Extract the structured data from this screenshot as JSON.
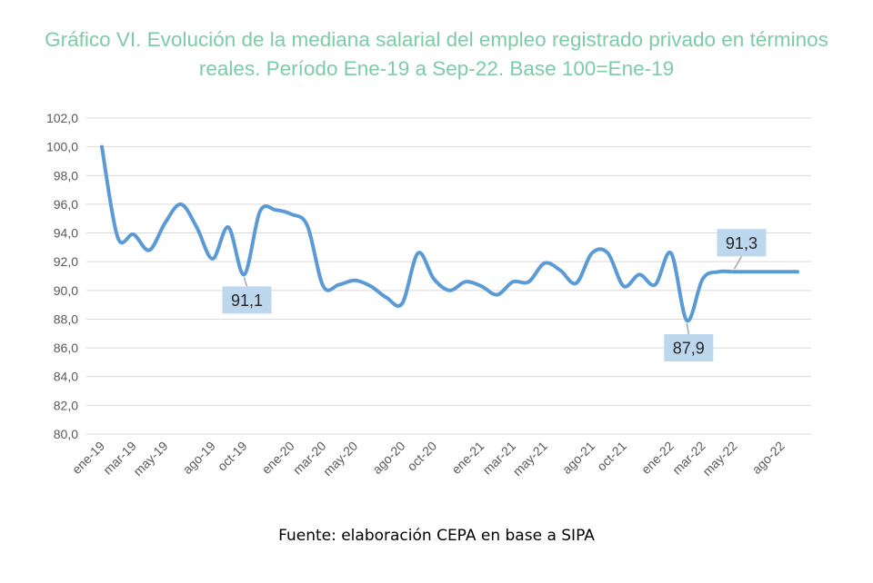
{
  "title": "Gráfico VI. Evolución de la mediana salarial del empleo registrado privado en términos reales. Período Ene-19 a Sep-22. Base 100=Ene-19",
  "source": "Fuente: elaboración CEPA en base a SIPA",
  "colors": {
    "title": "#7dcba8",
    "line": "#5b9bd5",
    "label_bg": "#bdd7ee",
    "grid": "#d9d9d9",
    "axis_text": "#595959"
  },
  "chart_data": {
    "type": "line",
    "title": "Gráfico VI. Evolución de la mediana salarial del empleo registrado privado en términos reales. Período Ene-19 a Sep-22. Base 100=Ene-19",
    "xlabel": "",
    "ylabel": "",
    "ylim": [
      80,
      102
    ],
    "yticks": [
      "80,0",
      "82,0",
      "84,0",
      "86,0",
      "88,0",
      "90,0",
      "92,0",
      "94,0",
      "96,0",
      "98,0",
      "100,0",
      "102,0"
    ],
    "grid": true,
    "legend": "none",
    "x": [
      "ene-19",
      "feb-19",
      "mar-19",
      "abr-19",
      "may-19",
      "jun-19",
      "jul-19",
      "ago-19",
      "sep-19",
      "oct-19",
      "nov-19",
      "dic-19",
      "ene-20",
      "feb-20",
      "mar-20",
      "abr-20",
      "may-20",
      "jun-20",
      "jul-20",
      "ago-20",
      "sep-20",
      "oct-20",
      "nov-20",
      "dic-20",
      "ene-21",
      "feb-21",
      "mar-21",
      "abr-21",
      "may-21",
      "jun-21",
      "jul-21",
      "ago-21",
      "sep-21",
      "oct-21",
      "nov-21",
      "dic-21",
      "ene-22",
      "feb-22",
      "mar-22",
      "abr-22",
      "may-22",
      "jun-22",
      "jul-22",
      "ago-22",
      "sep-22"
    ],
    "xtick_labels": [
      "ene-19",
      "mar-19",
      "may-19",
      "ago-19",
      "oct-19",
      "ene-20",
      "mar-20",
      "may-20",
      "ago-20",
      "oct-20",
      "ene-21",
      "mar-21",
      "may-21",
      "ago-21",
      "oct-21",
      "ene-22",
      "mar-22",
      "may-22",
      "ago-22"
    ],
    "series": [
      {
        "values": [
          100.0,
          93.7,
          93.9,
          92.8,
          94.7,
          96.0,
          94.4,
          92.2,
          94.4,
          91.1,
          95.5,
          95.6,
          95.3,
          94.5,
          90.3,
          90.4,
          90.7,
          90.3,
          89.5,
          89.1,
          92.6,
          90.8,
          90.0,
          90.6,
          90.3,
          89.7,
          90.6,
          90.6,
          91.9,
          91.4,
          90.5,
          92.6,
          92.6,
          90.3,
          91.1,
          90.4,
          92.6,
          87.9,
          90.8,
          91.3,
          91.3,
          91.3,
          91.3,
          91.3,
          91.3
        ]
      }
    ],
    "annotations": [
      {
        "text": "91,1",
        "index": 9
      },
      {
        "text": "87,9",
        "index": 37
      },
      {
        "text": "91,3",
        "index": 40
      }
    ]
  }
}
